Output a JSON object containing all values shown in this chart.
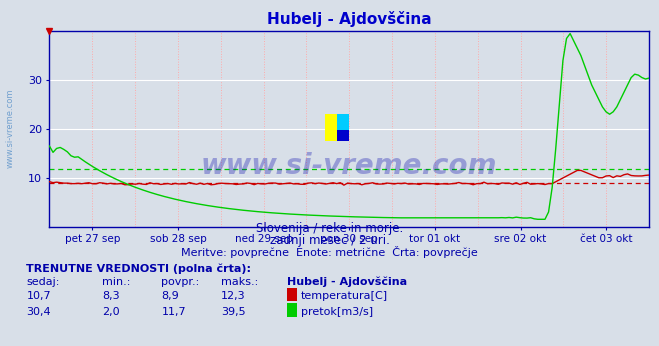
{
  "title": "Hubelj - Ajdovščina",
  "title_color": "#0000cc",
  "bg_color": "#d8dfe8",
  "plot_bg_color": "#d8dfe8",
  "grid_color_h": "#ffffff",
  "grid_color_v": "#ffaaaa",
  "axis_color": "#0000aa",
  "x_labels": [
    "pet 27 sep",
    "sob 28 sep",
    "ned 29 sep",
    "pon 30 sep",
    "tor 01 okt",
    "sre 02 okt",
    "čet 03 okt"
  ],
  "y_min": 0,
  "y_max": 40,
  "y_ticks": [
    10,
    20,
    30
  ],
  "subtitle1": "Slovenija / reke in morje.",
  "subtitle2": "zadnji mesec / 2 uri.",
  "subtitle3": "Meritve: povprečne  Enote: metrične  Črta: povprečje",
  "subtitle_color": "#0000aa",
  "footer_title": "TRENUTNE VREDNOSTI (polna črta):",
  "footer_color": "#0000aa",
  "col_headers": [
    "sedaj:",
    "min.:",
    "povpr.:",
    "maks.:",
    "Hubelj - Ajdovščina"
  ],
  "row1_vals": [
    "10,7",
    "8,3",
    "8,9",
    "12,3"
  ],
  "row2_vals": [
    "30,4",
    "2,0",
    "11,7",
    "39,5"
  ],
  "row1_label": "temperatura[C]",
  "row2_label": "pretok[m3/s]",
  "temp_color": "#cc0000",
  "flow_color": "#00cc00",
  "temp_avg": 8.9,
  "flow_avg": 11.7,
  "watermark": "www.si-vreme.com",
  "watermark_color": "#0000aa",
  "sidewatermark_color": "#6699cc"
}
